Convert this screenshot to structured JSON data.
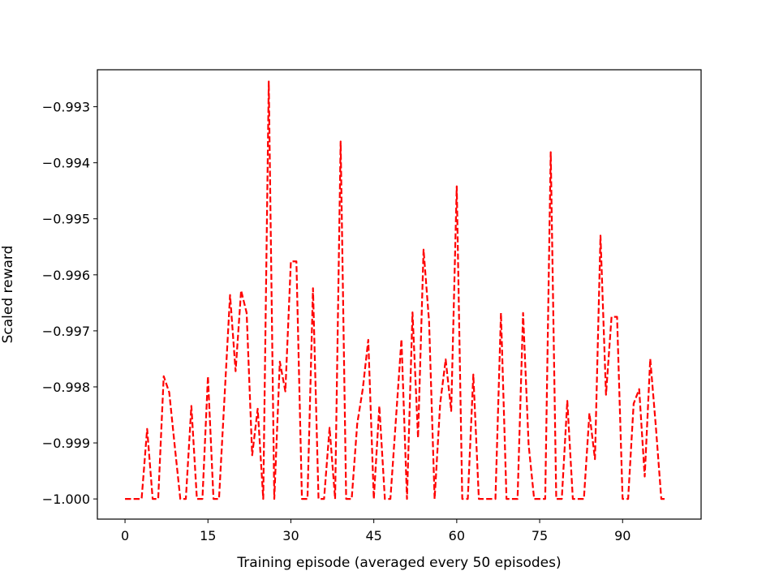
{
  "chart_data": {
    "type": "line",
    "title": "",
    "xlabel": "Training episode (averaged every 50 episodes)",
    "ylabel": "Scaled reward",
    "xlim": [
      -5,
      104.2
    ],
    "ylim": [
      -1.00036,
      -0.99234
    ],
    "xticks": [
      0,
      15,
      30,
      45,
      60,
      75,
      90
    ],
    "yticks": [
      -1.0,
      -0.999,
      -0.998,
      -0.997,
      -0.996,
      -0.995,
      -0.994,
      -0.993
    ],
    "ytick_labels": [
      "−1.000",
      "−0.999",
      "−0.998",
      "−0.997",
      "−0.996",
      "−0.995",
      "−0.994",
      "−0.993"
    ],
    "grid": false,
    "legend": "none",
    "series": [
      {
        "color": "#ff0000",
        "line_style": "dashed",
        "x": [
          0,
          1,
          2,
          3,
          4,
          5,
          6,
          7,
          8,
          9,
          10,
          11,
          12,
          13,
          14,
          15,
          16,
          17,
          18,
          19,
          20,
          21,
          22,
          23,
          24,
          25,
          26,
          27,
          28,
          29,
          30,
          31,
          32,
          33,
          34,
          35,
          36,
          37,
          38,
          39,
          40,
          41,
          42,
          43,
          44,
          45,
          46,
          47,
          48,
          49,
          50,
          51,
          52,
          53,
          54,
          55,
          56,
          57,
          58,
          59,
          60,
          61,
          62,
          63,
          64,
          65,
          66,
          67,
          68,
          69,
          70,
          71,
          72,
          73,
          74,
          75,
          76,
          77,
          78,
          79,
          80,
          81,
          82,
          83,
          84,
          85,
          86,
          87,
          88,
          89,
          90,
          91,
          92,
          93,
          94,
          95,
          96,
          97,
          98
        ],
        "y": [
          -1.0,
          -1.0,
          -1.0,
          -1.0,
          -0.99875,
          -1.0,
          -1.0,
          -0.99781,
          -0.9981,
          -0.99906,
          -1.0,
          -1.0,
          -0.99834,
          -1.0,
          -1.0,
          -0.99781,
          -1.0,
          -1.0,
          -0.99818,
          -0.99636,
          -0.99772,
          -0.99628,
          -0.99668,
          -0.99922,
          -0.99839,
          -1.0,
          -0.99255,
          -1.0,
          -0.99755,
          -0.99808,
          -0.99576,
          -0.99576,
          -1.0,
          -1.0,
          -0.99624,
          -1.0,
          -1.0,
          -0.99873,
          -1.0,
          -0.99362,
          -1.0,
          -1.0,
          -0.99866,
          -0.99804,
          -0.99716,
          -1.0,
          -0.99834,
          -1.0,
          -1.0,
          -0.99858,
          -0.99715,
          -1.0,
          -0.99667,
          -0.99891,
          -0.99555,
          -0.99684,
          -1.0,
          -0.9983,
          -0.99751,
          -0.99843,
          -0.99442,
          -1.0,
          -1.0,
          -0.99778,
          -1.0,
          -1.0,
          -1.0,
          -1.0,
          -0.99668,
          -1.0,
          -1.0,
          -1.0,
          -0.99668,
          -0.99903,
          -1.0,
          -1.0,
          -1.0,
          -0.99381,
          -1.0,
          -1.0,
          -0.99825,
          -1.0,
          -1.0,
          -1.0,
          -0.99847,
          -0.99929,
          -0.9953,
          -0.99814,
          -0.99675,
          -0.99675,
          -1.0,
          -1.0,
          -0.9983,
          -0.99804,
          -0.9996,
          -0.9975,
          -0.99869,
          -1.0,
          -1.0
        ]
      }
    ]
  }
}
